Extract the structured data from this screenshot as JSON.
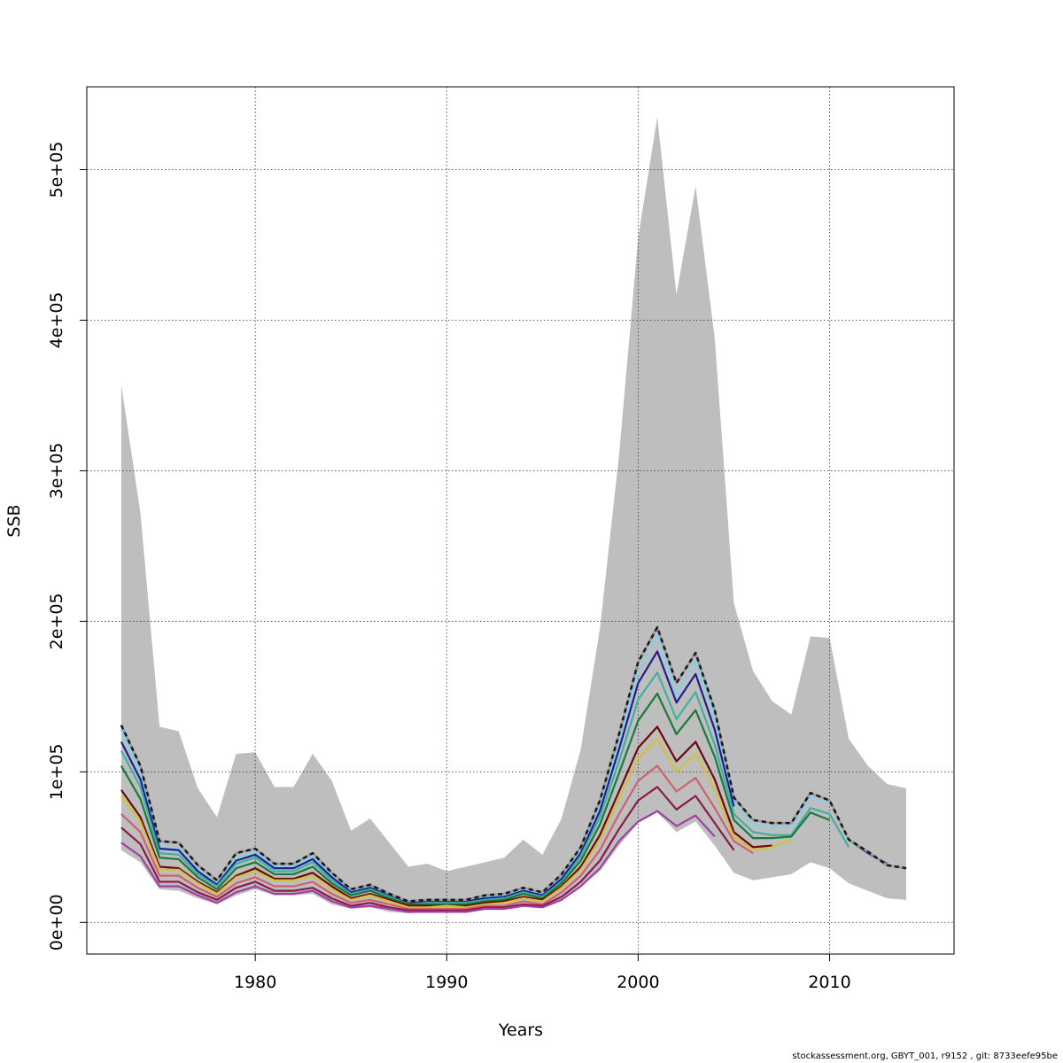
{
  "chart_data": {
    "type": "line",
    "xlabel": "Years",
    "ylabel": "SSB",
    "xlim": [
      1971.2,
      2016.5
    ],
    "ylim": [
      -21000,
      555000
    ],
    "xticks": [
      1980,
      1990,
      2000,
      2010
    ],
    "xtick_labels": [
      "1980",
      "1990",
      "2000",
      "2010"
    ],
    "yticks": [
      0,
      100000,
      200000,
      300000,
      400000,
      500000
    ],
    "ytick_labels": [
      "0e+00",
      "1e+05",
      "2e+05",
      "3e+05",
      "4e+05",
      "5e+05"
    ],
    "grid": true,
    "legend": "none",
    "confidence_band": {
      "color": "#bebebe",
      "x": [
        1973,
        1974,
        1975,
        1976,
        1977,
        1978,
        1979,
        1980,
        1981,
        1982,
        1983,
        1984,
        1985,
        1986,
        1987,
        1988,
        1989,
        1990,
        1991,
        1992,
        1993,
        1994,
        1995,
        1996,
        1997,
        1998,
        1999,
        2000,
        2001,
        2002,
        2003,
        2004,
        2005,
        2006,
        2007,
        2008,
        2009,
        2010,
        2011,
        2012,
        2013,
        2014
      ],
      "upper": [
        357000,
        272000,
        130000,
        127000,
        89000,
        70000,
        112000,
        113000,
        90000,
        90000,
        112000,
        94000,
        61000,
        69000,
        53000,
        37000,
        39000,
        34000,
        37000,
        40000,
        43000,
        55000,
        45000,
        69000,
        115000,
        195000,
        310000,
        455000,
        535000,
        417000,
        489000,
        388000,
        212000,
        167000,
        147000,
        138000,
        190000,
        189000,
        122000,
        104000,
        92000,
        89000
      ],
      "lower": [
        48000,
        40000,
        22000,
        21000,
        16000,
        12000,
        18000,
        22000,
        18000,
        18000,
        19000,
        12000,
        9000,
        10000,
        7000,
        6000,
        7000,
        7000,
        7000,
        9000,
        10000,
        11000,
        10000,
        16000,
        24000,
        34000,
        51000,
        66000,
        73000,
        60000,
        67000,
        51000,
        33000,
        28000,
        30000,
        32000,
        40000,
        36000,
        26000,
        21000,
        16000,
        15000
      ]
    },
    "series": [
      {
        "color": "#87ceeb",
        "x": [
          1973,
          1974,
          1975,
          1976,
          1977,
          1978,
          1979,
          1980,
          1981,
          1982,
          1983,
          1984,
          1985,
          1986,
          1987,
          1988,
          1989,
          1990,
          1991,
          1992,
          1993,
          1994,
          1995,
          1996,
          1997,
          1998,
          1999,
          2000,
          2001,
          2002,
          2003,
          2004,
          2005,
          2006,
          2007,
          2008,
          2009,
          2010
        ],
        "values": [
          128000,
          100000,
          50000,
          49000,
          35000,
          26000,
          43000,
          47000,
          37000,
          37000,
          44000,
          31000,
          21000,
          24000,
          18000,
          13000,
          14000,
          14000,
          14000,
          17000,
          18000,
          22000,
          19000,
          30000,
          48000,
          77000,
          120000,
          167000,
          191000,
          151000,
          174000,
          136000,
          80000,
          65000,
          63000,
          64000,
          83000,
          79000
        ]
      },
      {
        "color": "#1f1f8f",
        "x": [
          1973,
          1974,
          1975,
          1976,
          1977,
          1978,
          1979,
          1980,
          1981,
          1982,
          1983,
          1984,
          1985,
          1986,
          1987,
          1988,
          1989,
          1990,
          1991,
          1992,
          1993,
          1994,
          1995,
          1996,
          1997,
          1998,
          1999,
          2000,
          2001,
          2002,
          2003,
          2004,
          2005
        ],
        "values": [
          120000,
          95000,
          49000,
          48000,
          34000,
          25000,
          41000,
          45000,
          36000,
          36000,
          42000,
          30000,
          20000,
          23000,
          18000,
          13000,
          14000,
          14000,
          14000,
          16000,
          17000,
          21000,
          18000,
          29000,
          46000,
          74000,
          115000,
          159000,
          180000,
          146000,
          165000,
          128000,
          77000
        ]
      },
      {
        "color": "#40b0a0",
        "x": [
          1973,
          1974,
          1975,
          1976,
          1977,
          1978,
          1979,
          1980,
          1981,
          1982,
          1983,
          1984,
          1985,
          1986,
          1987,
          1988,
          1989,
          1990,
          1991,
          1992,
          1993,
          1994,
          1995,
          1996,
          1997,
          1998,
          1999,
          2000,
          2001,
          2002,
          2003,
          2004,
          2005,
          2006,
          2007,
          2008,
          2009,
          2010,
          2011
        ],
        "values": [
          114000,
          90000,
          46000,
          45000,
          32000,
          24000,
          39000,
          43000,
          34000,
          34000,
          40000,
          28000,
          19000,
          22000,
          17000,
          12000,
          13000,
          13000,
          13000,
          15000,
          16000,
          20000,
          17000,
          27000,
          44000,
          70000,
          107000,
          148000,
          166000,
          135000,
          153000,
          118000,
          72000,
          60000,
          58000,
          58000,
          76000,
          72000,
          50000
        ]
      },
      {
        "color": "#1a7a3c",
        "x": [
          1973,
          1974,
          1975,
          1976,
          1977,
          1978,
          1979,
          1980,
          1981,
          1982,
          1983,
          1984,
          1985,
          1986,
          1987,
          1988,
          1989,
          1990,
          1991,
          1992,
          1993,
          1994,
          1995,
          1996,
          1997,
          1998,
          1999,
          2000,
          2001,
          2002,
          2003,
          2004,
          2005,
          2006,
          2007,
          2008,
          2009,
          2010
        ],
        "values": [
          104000,
          82000,
          43000,
          42000,
          30000,
          22000,
          36000,
          40000,
          32000,
          32000,
          37000,
          26000,
          18000,
          21000,
          16000,
          12000,
          12000,
          12000,
          12000,
          14000,
          15000,
          19000,
          16000,
          26000,
          41000,
          65000,
          99000,
          134000,
          152000,
          125000,
          141000,
          110000,
          68000,
          56000,
          56000,
          57000,
          73000,
          68000
        ]
      },
      {
        "color": "#6b0a0a",
        "x": [
          1973,
          1974,
          1975,
          1976,
          1977,
          1978,
          1979,
          1980,
          1981,
          1982,
          1983,
          1984,
          1985,
          1986,
          1987,
          1988,
          1989,
          1990,
          1991,
          1992,
          1993,
          1994,
          1995,
          1996,
          1997,
          1998,
          1999,
          2000,
          2001,
          2002,
          2003,
          2004,
          2005,
          2006,
          2007
        ],
        "values": [
          88000,
          70000,
          37000,
          36000,
          27000,
          20000,
          31000,
          36000,
          29000,
          29000,
          33000,
          24000,
          16000,
          19000,
          15000,
          11000,
          11000,
          11000,
          11000,
          13000,
          14000,
          17000,
          15000,
          24000,
          37000,
          58000,
          87000,
          116000,
          130000,
          107000,
          120000,
          95000,
          60000,
          50000,
          51000
        ]
      },
      {
        "color": "#d4c040",
        "x": [
          1973,
          1974,
          1975,
          1976,
          1977,
          1978,
          1979,
          1980,
          1981,
          1982,
          1983,
          1984,
          1985,
          1986,
          1987,
          1988,
          1989,
          1990,
          1991,
          1992,
          1993,
          1994,
          1995,
          1996,
          1997,
          1998,
          1999,
          2000,
          2001,
          2002,
          2003,
          2004,
          2005,
          2006,
          2007,
          2008
        ],
        "values": [
          84000,
          67000,
          35000,
          35000,
          26000,
          19000,
          30000,
          34000,
          28000,
          28000,
          31000,
          22000,
          15000,
          18000,
          14000,
          10000,
          10000,
          11000,
          10000,
          12000,
          13000,
          16000,
          14000,
          23000,
          35000,
          55000,
          82000,
          109000,
          122000,
          100000,
          112000,
          88000,
          57000,
          48000,
          50000,
          55000
        ]
      },
      {
        "color": "#d06070",
        "x": [
          1973,
          1974,
          1975,
          1976,
          1977,
          1978,
          1979,
          1980,
          1981,
          1982,
          1983,
          1984,
          1985,
          1986,
          1987,
          1988,
          1989,
          1990,
          1991,
          1992,
          1993,
          1994,
          1995,
          1996,
          1997,
          1998,
          1999,
          2000,
          2001,
          2002,
          2003,
          2004,
          2005,
          2006
        ],
        "values": [
          72000,
          60000,
          31000,
          31000,
          23000,
          17000,
          26000,
          30000,
          24000,
          24000,
          27000,
          19000,
          13000,
          15000,
          12000,
          9000,
          9000,
          9000,
          9000,
          11000,
          11000,
          14000,
          12000,
          20000,
          31000,
          48000,
          72000,
          94000,
          104000,
          87000,
          96000,
          76000,
          54000,
          46000
        ]
      },
      {
        "color": "#8b1a4a",
        "x": [
          1973,
          1974,
          1975,
          1976,
          1977,
          1978,
          1979,
          1980,
          1981,
          1982,
          1983,
          1984,
          1985,
          1986,
          1987,
          1988,
          1989,
          1990,
          1991,
          1992,
          1993,
          1994,
          1995,
          1996,
          1997,
          1998,
          1999,
          2000,
          2001,
          2002,
          2003,
          2004,
          2005
        ],
        "values": [
          63000,
          52000,
          27000,
          27000,
          20000,
          15000,
          23000,
          27000,
          21000,
          21000,
          23000,
          16000,
          11000,
          13000,
          10000,
          8000,
          8000,
          8000,
          8000,
          10000,
          10000,
          12000,
          11000,
          17000,
          27000,
          41000,
          62000,
          81000,
          90000,
          75000,
          84000,
          66000,
          48000
        ]
      },
      {
        "color": "#a040a0",
        "x": [
          1973,
          1974,
          1975,
          1976,
          1977,
          1978,
          1979,
          1980,
          1981,
          1982,
          1983,
          1984,
          1985,
          1986,
          1987,
          1988,
          1989,
          1990,
          1991,
          1992,
          1993,
          1994,
          1995,
          1996,
          1997,
          1998,
          1999,
          2000,
          2001,
          2002,
          2003,
          2004
        ],
        "values": [
          53000,
          44000,
          24000,
          24000,
          18000,
          13000,
          20000,
          24000,
          19000,
          19000,
          21000,
          14000,
          10000,
          11000,
          9000,
          7000,
          7000,
          7000,
          7000,
          9000,
          9000,
          11000,
          10000,
          15000,
          24000,
          36000,
          54000,
          67000,
          74000,
          64000,
          71000,
          57000
        ]
      },
      {
        "color": "#1a4aaa",
        "x": [
          2011,
          2012,
          2013
        ],
        "values": [
          55000,
          46000,
          39000
        ]
      },
      {
        "color": "#1a1a1a",
        "dashed": true,
        "x": [
          1973,
          1974,
          1975,
          1976,
          1977,
          1978,
          1979,
          1980,
          1981,
          1982,
          1983,
          1984,
          1985,
          1986,
          1987,
          1988,
          1989,
          1990,
          1991,
          1992,
          1993,
          1994,
          1995,
          1996,
          1997,
          1998,
          1999,
          2000,
          2001,
          2002,
          2003,
          2004,
          2005,
          2006,
          2007,
          2008,
          2009,
          2010,
          2011,
          2012,
          2013,
          2014
        ],
        "values": [
          131000,
          104000,
          54000,
          53000,
          38000,
          28000,
          46000,
          49000,
          39000,
          39000,
          46000,
          33000,
          22000,
          25000,
          19000,
          14000,
          15000,
          15000,
          15000,
          18000,
          19000,
          23000,
          20000,
          32000,
          50000,
          81000,
          125000,
          173000,
          196000,
          159000,
          179000,
          141000,
          83000,
          68000,
          66000,
          66000,
          86000,
          81000,
          55000,
          47000,
          38000,
          36000
        ]
      }
    ]
  },
  "footer": "stockassessment.org, GBYT_001, r9152 , git: 8733eefe95be"
}
